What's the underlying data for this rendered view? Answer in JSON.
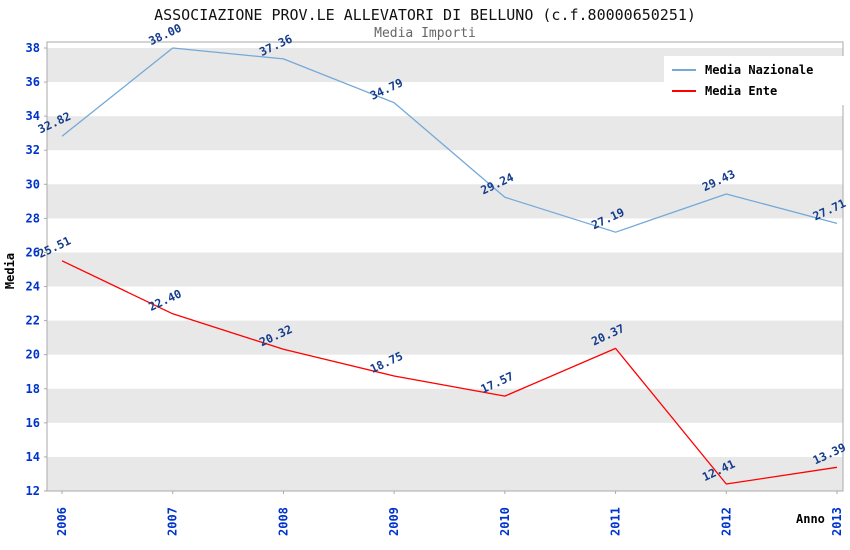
{
  "chart_data": {
    "type": "line",
    "title": "ASSOCIAZIONE PROV.LE ALLEVATORI DI BELLUNO (c.f.80000650251)",
    "subtitle": "Media Importi",
    "xlabel": "Anno",
    "ylabel": "Media",
    "categories": [
      "2006",
      "2007",
      "2008",
      "2009",
      "2010",
      "2011",
      "2012",
      "2013"
    ],
    "ylim": [
      12,
      38
    ],
    "ytick_step": 2,
    "grid": "horizontal-bands",
    "legend_position": "top-right",
    "series": [
      {
        "name": "Media Nazionale",
        "color": "#74A9D8",
        "values": [
          32.82,
          38.0,
          37.36,
          34.79,
          29.24,
          27.19,
          29.43,
          27.71
        ]
      },
      {
        "name": "Media Ente",
        "color": "#FF0000",
        "values": [
          25.51,
          22.4,
          20.32,
          18.75,
          17.57,
          20.37,
          12.41,
          13.39
        ]
      }
    ],
    "colors": {
      "tick_label": "#0033CC",
      "data_label": "#143C8C",
      "band_gray": "#E8E8E8",
      "band_white": "#FFFFFF",
      "frame": "#AAAAAA",
      "title": "#111111",
      "subtitle": "#666666"
    }
  }
}
